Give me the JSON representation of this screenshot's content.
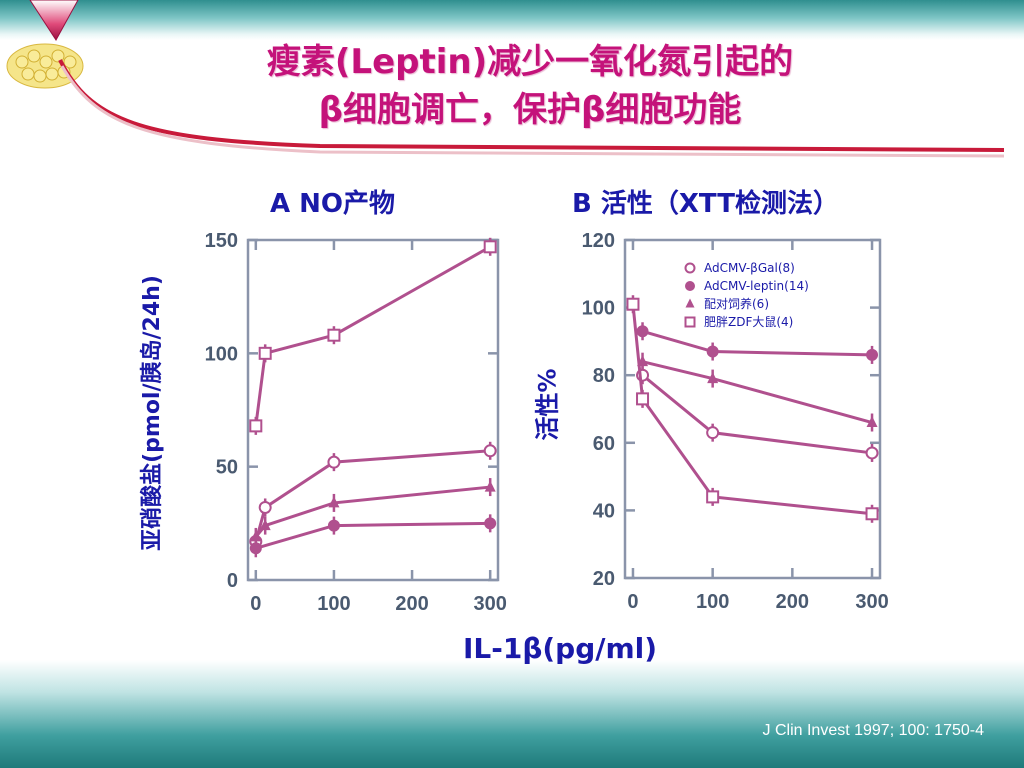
{
  "title": {
    "line1": "瘦素(Leptin)减少一氧化氮引起的",
    "line2": "β细胞调亡，保护β细胞功能"
  },
  "x_axis_label": "IL-1β(pg/ml)",
  "source": "J Clin Invest 1997; 100: 1750-4",
  "colors": {
    "title": "#c4127a",
    "labels": "#1a1aa8",
    "series": "#b0508e",
    "axis_text": "#4a5a70"
  },
  "chart_data": [
    {
      "type": "line",
      "title": "A NO产物",
      "ylabel": "亚硝酸盐(pmol/胰岛/24h)",
      "xlim": [
        -10,
        310
      ],
      "ylim": [
        0,
        150
      ],
      "xticks": [
        0,
        100,
        200,
        300
      ],
      "yticks": [
        0,
        50,
        100,
        150
      ],
      "series": [
        {
          "name": "AdCMV-βGal(8)",
          "marker": "open-circle",
          "x": [
            0,
            12,
            100,
            300
          ],
          "y": [
            17,
            32,
            52,
            57
          ]
        },
        {
          "name": "AdCMV-leptin(14)",
          "marker": "filled-circle",
          "x": [
            0,
            100,
            300
          ],
          "y": [
            14,
            24,
            25
          ]
        },
        {
          "name": "配对饲养(6)",
          "marker": "triangle",
          "x": [
            0,
            12,
            100,
            300
          ],
          "y": [
            19,
            24,
            34,
            41
          ]
        },
        {
          "name": "肥胖ZDF大鼠(4)",
          "marker": "open-square",
          "x": [
            0,
            12,
            100,
            300
          ],
          "y": [
            68,
            100,
            108,
            147
          ]
        }
      ]
    },
    {
      "type": "line",
      "title": "B 活性（XTT检测法）",
      "ylabel": "活性%",
      "xlim": [
        -10,
        310
      ],
      "ylim": [
        20,
        120
      ],
      "xticks": [
        0,
        100,
        200,
        300
      ],
      "yticks": [
        20,
        40,
        60,
        80,
        100,
        120
      ],
      "legend": "top-right",
      "series": [
        {
          "name": "AdCMV-βGal(8)",
          "marker": "open-circle",
          "x": [
            12,
            100,
            300
          ],
          "y": [
            80,
            63,
            57
          ]
        },
        {
          "name": "AdCMV-leptin(14)",
          "marker": "filled-circle",
          "x": [
            12,
            100,
            300
          ],
          "y": [
            93,
            87,
            86
          ]
        },
        {
          "name": "配对饲养(6)",
          "marker": "triangle",
          "x": [
            12,
            100,
            300
          ],
          "y": [
            84,
            79,
            66
          ]
        },
        {
          "name": "肥胖ZDF大鼠(4)",
          "marker": "open-square",
          "x": [
            0,
            12,
            100,
            300
          ],
          "y": [
            101,
            73,
            44,
            39
          ]
        }
      ]
    }
  ]
}
